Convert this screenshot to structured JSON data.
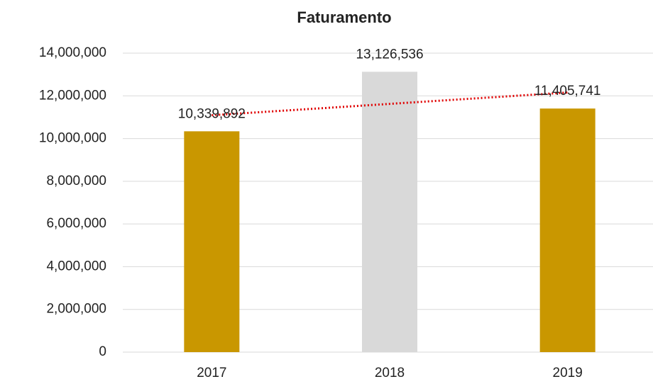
{
  "chart_data": {
    "type": "bar",
    "title": "Faturamento",
    "categories": [
      "2017",
      "2018",
      "2019"
    ],
    "values": [
      10339892,
      13126536,
      11405741
    ],
    "value_labels": [
      "10,339,892",
      "13,126,536",
      "11,405,741"
    ],
    "colors": [
      "#c99700",
      "#d9d9d9",
      "#c99700"
    ],
    "ylim": [
      0,
      14000000
    ],
    "yticks": [
      0,
      {
        "value": 2000000,
        "label": "2,000,000"
      },
      {
        "value": 4000000,
        "label": "4,000,000"
      },
      {
        "value": 6000000,
        "label": "6,000,000"
      },
      {
        "value": 8000000,
        "label": "8,000,000"
      },
      {
        "value": 10000000,
        "label": "10,000,000"
      },
      {
        "value": 12000000,
        "label": "12,000,000"
      },
      {
        "value": 14000000,
        "label": "14,000,000"
      }
    ],
    "grid": true,
    "trendline": {
      "type": "linear",
      "color": "#e00000",
      "style": "dotted"
    }
  }
}
